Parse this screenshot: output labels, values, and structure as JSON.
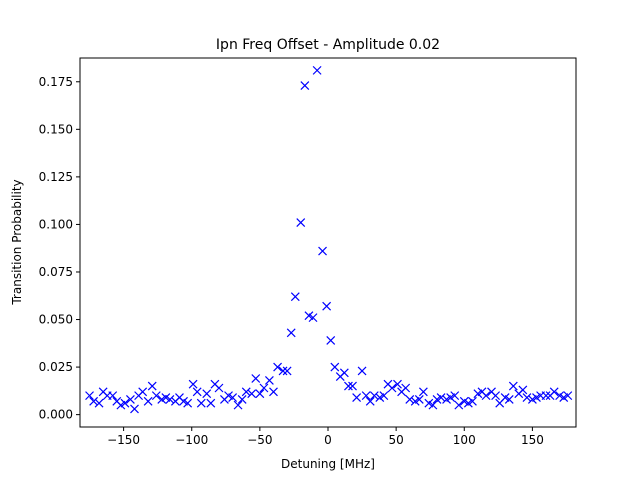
{
  "chart_data": {
    "type": "scatter",
    "title": "Ipn Freq Offset - Amplitude 0.02",
    "xlabel": "Detuning [MHz]",
    "ylabel": "Transition Probability",
    "xlim": [
      -182,
      182
    ],
    "ylim": [
      -0.0065,
      0.1875
    ],
    "xticks": [
      -150,
      -100,
      -50,
      0,
      50,
      100,
      150
    ],
    "xtick_labels": [
      "−150",
      "−100",
      "−50",
      "0",
      "50",
      "100",
      "150"
    ],
    "yticks": [
      0.0,
      0.025,
      0.05,
      0.075,
      0.1,
      0.125,
      0.15,
      0.175
    ],
    "ytick_labels": [
      "0.000",
      "0.025",
      "0.050",
      "0.075",
      "0.100",
      "0.125",
      "0.150",
      "0.175"
    ],
    "grid": false,
    "marker": "x",
    "color": "#0000ff",
    "series": [
      {
        "x": [
          -175,
          -172,
          -168,
          -165,
          -162,
          -158,
          -155,
          -152,
          -149,
          -145,
          -142,
          -139,
          -136,
          -132,
          -129,
          -126,
          -122,
          -119,
          -116,
          -112,
          -109,
          -106,
          -103,
          -99,
          -96,
          -93,
          -89,
          -86,
          -83,
          -80,
          -76,
          -73,
          -70,
          -66,
          -63,
          -60,
          -56,
          -53,
          -50,
          -47,
          -43,
          -40,
          -37,
          -33,
          -30,
          -27,
          -24,
          -20,
          -17,
          -14,
          -11,
          -8,
          -4,
          -1,
          2,
          5,
          9,
          12,
          15,
          18,
          21,
          25,
          28,
          31,
          34,
          38,
          41,
          44,
          47,
          51,
          54,
          57,
          60,
          64,
          67,
          70,
          74,
          77,
          80,
          83,
          87,
          90,
          93,
          96,
          100,
          103,
          106,
          110,
          113,
          116,
          120,
          123,
          126,
          130,
          133,
          136,
          140,
          143,
          146,
          150,
          153,
          156,
          160,
          163,
          166,
          170,
          173,
          176
        ],
        "y": [
          0.01,
          0.007,
          0.006,
          0.012,
          0.01,
          0.01,
          0.007,
          0.005,
          0.006,
          0.008,
          0.003,
          0.01,
          0.012,
          0.007,
          0.015,
          0.01,
          0.008,
          0.009,
          0.008,
          0.007,
          0.009,
          0.007,
          0.006,
          0.016,
          0.012,
          0.006,
          0.011,
          0.006,
          0.016,
          0.014,
          0.008,
          0.01,
          0.009,
          0.005,
          0.008,
          0.012,
          0.011,
          0.019,
          0.011,
          0.014,
          0.018,
          0.012,
          0.025,
          0.023,
          0.023,
          0.043,
          0.062,
          0.101,
          0.173,
          0.052,
          0.051,
          0.181,
          0.086,
          0.057,
          0.039,
          0.025,
          0.02,
          0.022,
          0.015,
          0.015,
          0.009,
          0.023,
          0.01,
          0.007,
          0.01,
          0.009,
          0.01,
          0.016,
          0.014,
          0.016,
          0.012,
          0.014,
          0.008,
          0.007,
          0.008,
          0.012,
          0.006,
          0.005,
          0.008,
          0.009,
          0.008,
          0.009,
          0.01,
          0.005,
          0.007,
          0.006,
          0.007,
          0.011,
          0.012,
          0.01,
          0.012,
          0.01,
          0.006,
          0.009,
          0.008,
          0.015,
          0.011,
          0.013,
          0.009,
          0.008,
          0.009,
          0.01,
          0.01,
          0.01,
          0.012,
          0.01,
          0.009,
          0.01
        ]
      }
    ]
  }
}
